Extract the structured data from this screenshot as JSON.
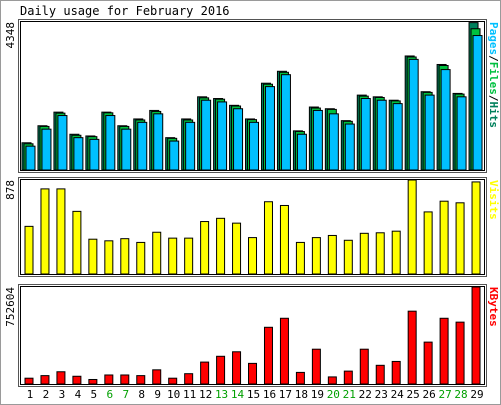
{
  "chart_data": {
    "type": "bar",
    "title": "Daily usage for February 2016",
    "days": [
      "1",
      "2",
      "3",
      "4",
      "5",
      "6",
      "7",
      "8",
      "9",
      "10",
      "11",
      "12",
      "13",
      "14",
      "15",
      "16",
      "17",
      "18",
      "19",
      "20",
      "21",
      "22",
      "23",
      "24",
      "25",
      "26",
      "27",
      "28",
      "29"
    ],
    "weekend_days": [
      "6",
      "7",
      "13",
      "14",
      "20",
      "21",
      "27",
      "28"
    ],
    "colors": {
      "hits": "#00805c",
      "files": "#00c040",
      "pages": "#00c0ff",
      "visits": "#ffff00",
      "kbytes": "#ff0000",
      "weekday_label": "#000000",
      "weekend_label": "#00a000"
    },
    "panels": {
      "usage": {
        "ymax_label": "4348",
        "ymax": 4348,
        "side_label_parts": [
          {
            "text": "Pages",
            "color": "#00c0ff"
          },
          {
            "text": "/",
            "color": "#000000"
          },
          {
            "text": "Files",
            "color": "#00c040"
          },
          {
            "text": "/",
            "color": "#000000"
          },
          {
            "text": "Hits",
            "color": "#00805c"
          }
        ],
        "series": [
          {
            "name": "Hits",
            "values": [
              800,
              1300,
              1700,
              1050,
              1000,
              1700,
              1300,
              1500,
              1750,
              950,
              1500,
              2150,
              2100,
              1900,
              1500,
              2550,
              2900,
              1150,
              1850,
              1800,
              1450,
              2200,
              2150,
              2050,
              3350,
              2300,
              3100,
              2250,
              4330
            ]
          },
          {
            "name": "Files",
            "values": [
              770,
              1280,
              1670,
              1020,
              980,
              1680,
              1280,
              1470,
              1720,
              930,
              1470,
              2120,
              2080,
              1880,
              1480,
              2520,
              2870,
              1130,
              1820,
              1780,
              1430,
              2170,
              2130,
              2030,
              3320,
              2280,
              3070,
              2230,
              4150
            ]
          },
          {
            "name": "Pages",
            "values": [
              700,
              1200,
              1600,
              950,
              900,
              1600,
              1200,
              1400,
              1650,
              850,
              1400,
              2050,
              2000,
              1800,
              1400,
              2450,
              2800,
              1050,
              1750,
              1650,
              1350,
              2100,
              2050,
              1950,
              3250,
              2200,
              2950,
              2150,
              3950
            ]
          }
        ]
      },
      "visits": {
        "ymax_label": "878",
        "ymax": 878,
        "side_label": "Visits",
        "series": [
          {
            "name": "Visits",
            "values": [
              445,
              795,
              795,
              585,
              325,
              310,
              330,
              295,
              390,
              335,
              335,
              490,
              520,
              475,
              340,
              675,
              640,
              295,
              340,
              360,
              315,
              380,
              385,
              400,
              878,
              580,
              680,
              665,
              860
            ]
          }
        ]
      },
      "kbytes": {
        "ymax_label": "752604",
        "ymax": 752604,
        "side_label": "KBytes",
        "series": [
          {
            "name": "KBytes",
            "values": [
              45000,
              65000,
              95000,
              60000,
              35000,
              70000,
              70000,
              65000,
              110000,
              45000,
              80000,
              170000,
              215000,
              250000,
              160000,
              440000,
              510000,
              90000,
              270000,
              55000,
              100000,
              270000,
              145000,
              175000,
              565000,
              325000,
              510000,
              480000,
              752604
            ]
          }
        ]
      }
    }
  }
}
